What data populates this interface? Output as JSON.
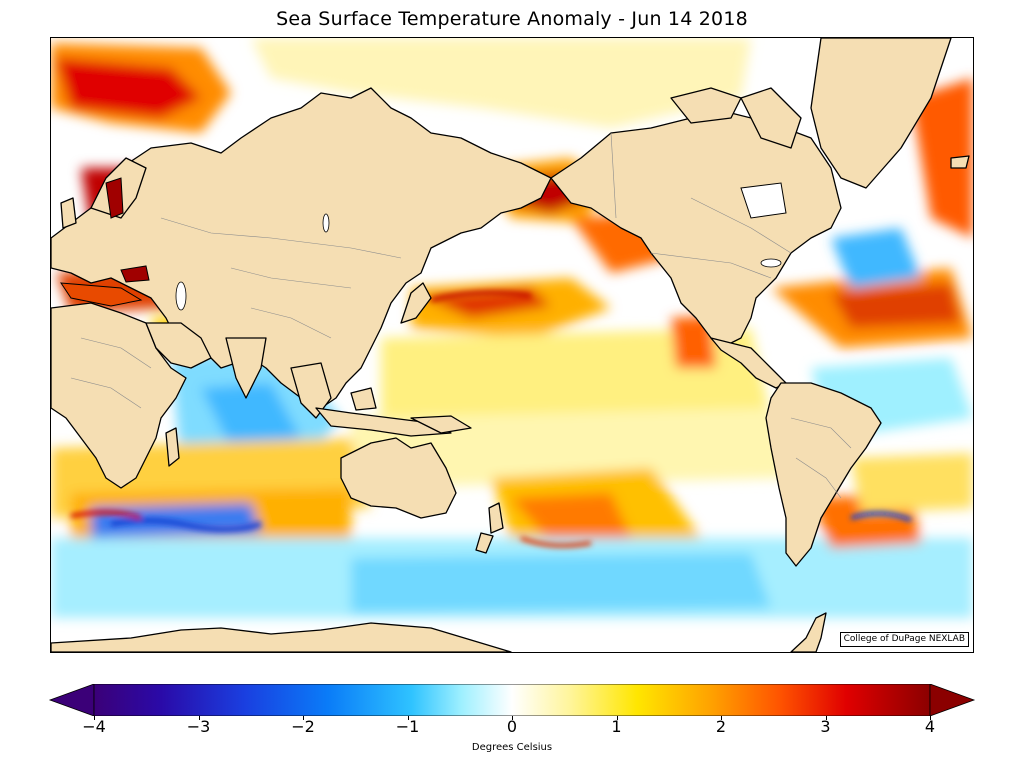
{
  "title": "Sea Surface Temperature Anomaly - Jun 14 2018",
  "credit": "College of DuPage NEXLAB",
  "colorbar": {
    "label": "Degrees Celsius",
    "range": [
      -4,
      4
    ],
    "extend": "both",
    "ticks": [
      -4,
      -3,
      -2,
      -1,
      0,
      1,
      2,
      3,
      4
    ],
    "tick_labels": [
      "−4",
      "−3",
      "−2",
      "−1",
      "0",
      "1",
      "2",
      "3",
      "4"
    ],
    "colors": [
      "#3b0078",
      "#2a0aa8",
      "#1a3fe0",
      "#0a7cf8",
      "#2fc3ff",
      "#9ff0ff",
      "#ffffff",
      "#fff59a",
      "#ffe600",
      "#ffa000",
      "#ff5400",
      "#e00000",
      "#8b0000"
    ]
  },
  "map": {
    "projection": "cylindrical, Pacific-centered",
    "land_color": "#f5deb3",
    "ocean_default": "#ffffff",
    "coastline_color": "#000000",
    "border_color": "#8c8c8c"
  }
}
